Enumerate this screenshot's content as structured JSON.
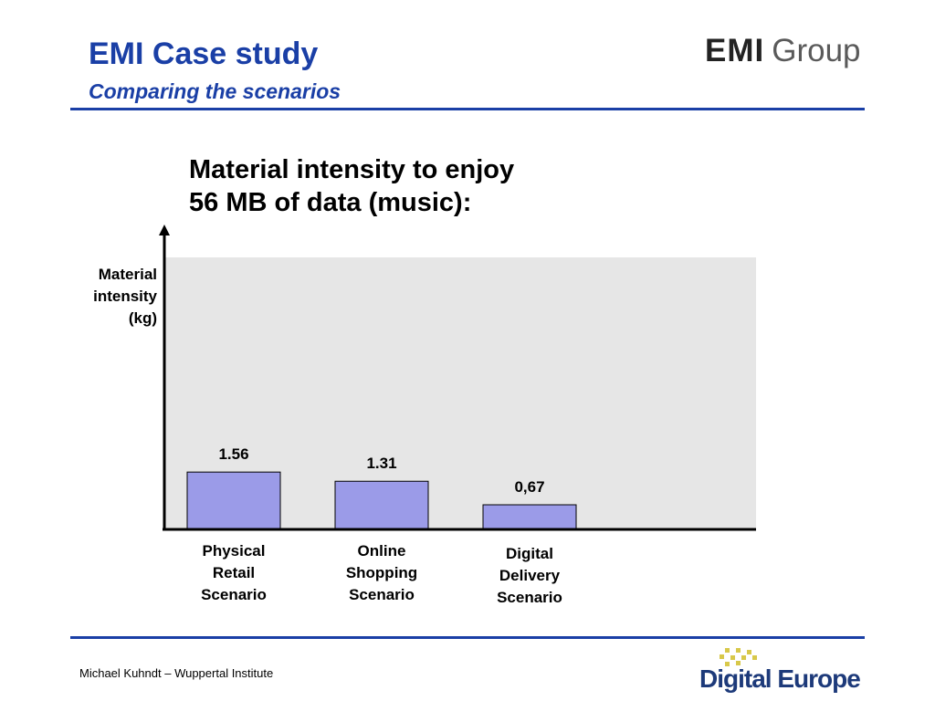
{
  "slide": {
    "title": "EMI Case study",
    "subtitle": "Comparing the scenarios",
    "footer": "Michael Kuhndt – Wuppertal Institute"
  },
  "logos": {
    "emi_bold": "EMI",
    "emi_light": "Group",
    "digital_europe": "Digital Europe"
  },
  "chart_data": {
    "type": "bar",
    "title_lines": [
      "Material intensity to enjoy",
      "56 MB of data (music):"
    ],
    "ylabel_lines": [
      "Material",
      "intensity",
      "(kg)"
    ],
    "categories": [
      [
        "Physical",
        "Retail",
        "Scenario"
      ],
      [
        "Online",
        "Shopping",
        "Scenario"
      ],
      [
        "Digital",
        "Delivery",
        "Scenario"
      ]
    ],
    "values": [
      1.56,
      1.31,
      0.67
    ],
    "data_labels": [
      "1.56",
      "1.31",
      "0,67"
    ],
    "ylim": [
      0,
      7.4
    ],
    "grid": false,
    "colors": {
      "bar": "#9b9be8",
      "plot_bg": "#e6e6e6",
      "axis": "#000000",
      "title_blue": "#1a3fa6"
    }
  }
}
